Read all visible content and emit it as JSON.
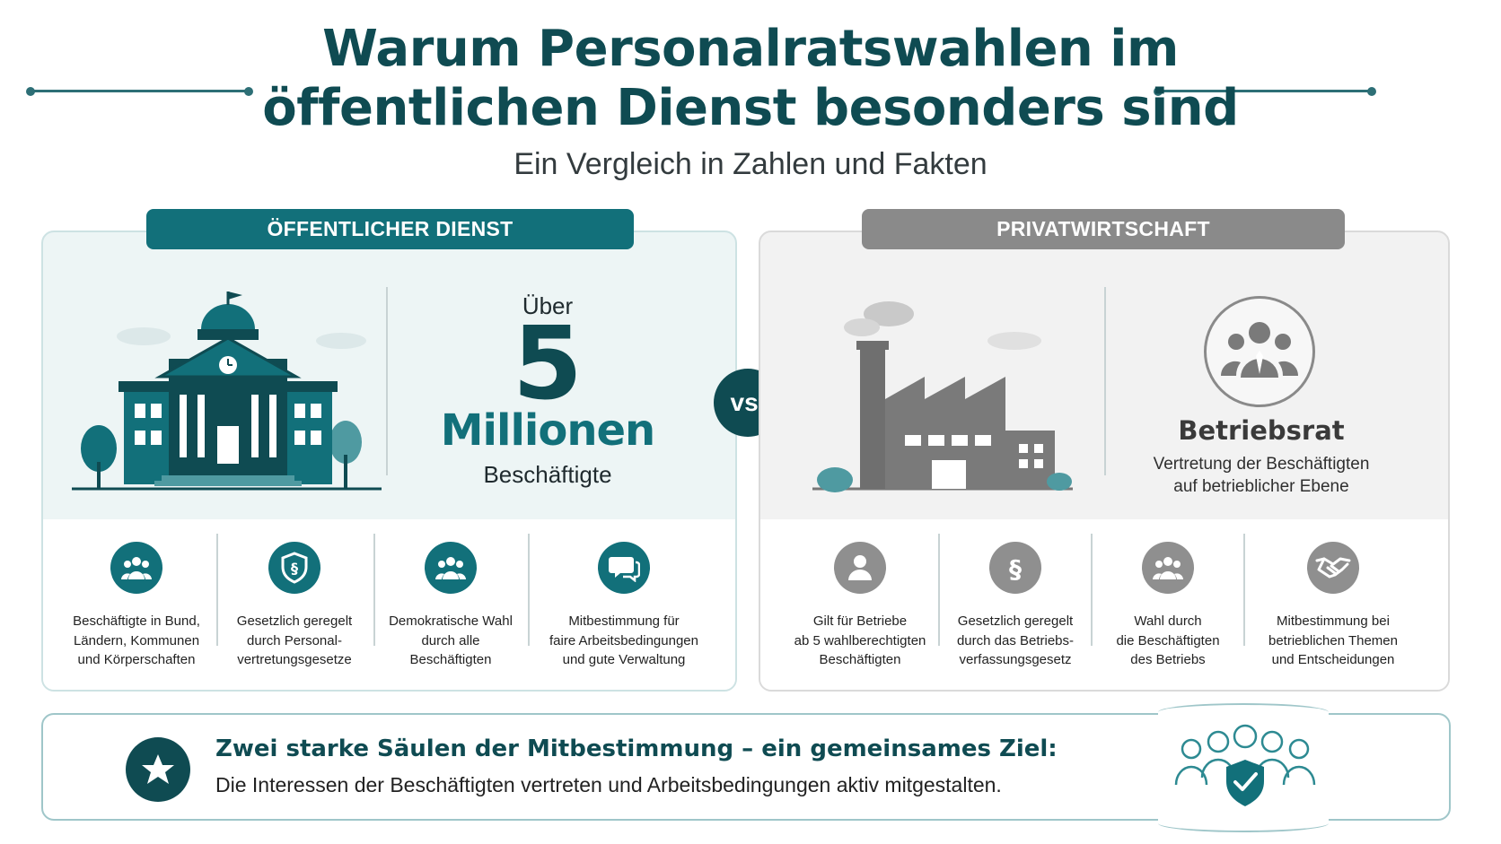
{
  "header": {
    "title_line1": "Warum Personalratswahlen im",
    "title_line2": "öffentlichen Dienst besonders sind",
    "subtitle": "Ein Vergleich in Zahlen und Fakten"
  },
  "public_sector": {
    "label": "ÖFFENTLICHER DIENST",
    "stat_prefix": "Über",
    "stat_number": "5",
    "stat_unit": "Millionen",
    "stat_caption": "Beschäftigte",
    "features": [
      {
        "icon": "group-icon",
        "text": "Beschäftigte in Bund,\nLändern, Kommunen\nund Körperschaften"
      },
      {
        "icon": "shield-paragraph-icon",
        "text": "Gesetzlich geregelt\ndurch Personal-\nvertretungsgesetze"
      },
      {
        "icon": "group-icon",
        "text": "Demokratische Wahl\ndurch alle\nBeschäftigten"
      },
      {
        "icon": "speech-bubbles-icon",
        "text": "Mitbestimmung für\nfaire Arbeitsbedingungen\nund gute Verwaltung"
      }
    ]
  },
  "versus": "vs.",
  "private_sector": {
    "label": "PRIVATWIRTSCHAFT",
    "body_title": "Betriebsrat",
    "body_desc_line1": "Vertretung der Beschäftigten",
    "body_desc_line2": "auf betrieblicher Ebene",
    "features": [
      {
        "icon": "person-icon",
        "text": "Gilt für Betriebe\nab 5 wahlberechtigten\nBeschäftigten"
      },
      {
        "icon": "paragraph-icon",
        "text": "Gesetzlich geregelt\ndurch das Betriebs-\nverfassungsgesetz"
      },
      {
        "icon": "group-icon",
        "text": "Wahl durch\ndie Beschäftigten\ndes Betriebs"
      },
      {
        "icon": "handshake-icon",
        "text": "Mitbestimmung bei\nbetrieblichen Themen\nund Entscheidungen"
      }
    ]
  },
  "summary": {
    "title": "Zwei starke Säulen der Mitbestimmung – ein gemeinsames Ziel:",
    "text": "Die Interessen der Beschäftigten vertreten und Arbeitsbedingungen aktiv mitgestalten."
  },
  "colors": {
    "primary": "#0f4b52",
    "accent": "#12707a",
    "gray": "#8a8a8a"
  }
}
